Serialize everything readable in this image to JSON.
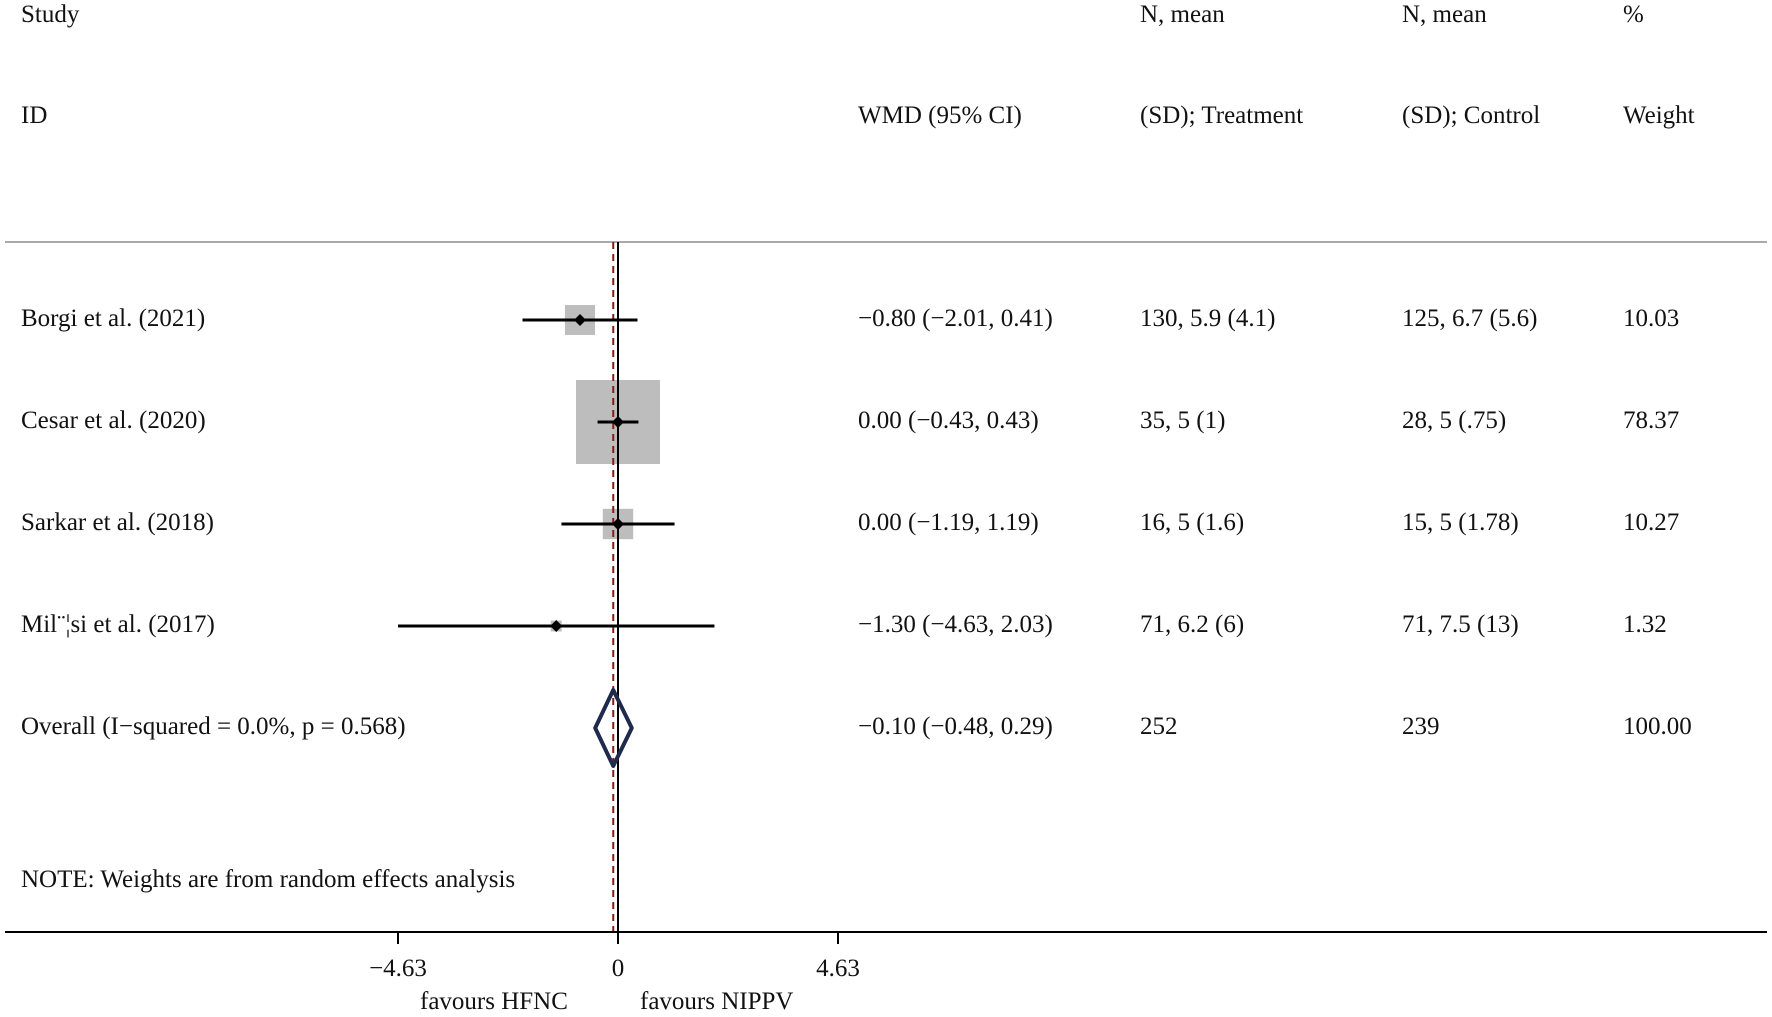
{
  "header": {
    "study_line1": "Study",
    "study_line2": "ID",
    "wmd_label": "WMD (95% CI)",
    "treatment_line1": "N, mean",
    "treatment_line2": "(SD); Treatment",
    "control_line1": "N, mean",
    "control_line2": "(SD); Control",
    "weight_line1": "%",
    "weight_line2": "Weight"
  },
  "rows": [
    {
      "study": "Borgi et al. (2021)",
      "wmd": "−0.80 (−2.01, 0.41)",
      "treatment": "130, 5.9 (4.1)",
      "control": "125, 6.7 (5.6)",
      "weight": "10.03"
    },
    {
      "study": "Cesar et al. (2020)",
      "wmd": "0.00 (−0.43, 0.43)",
      "treatment": "35, 5 (1)",
      "control": "28, 5 (.75)",
      "weight": "78.37"
    },
    {
      "study": "Sarkar et al. (2018)",
      "wmd": "0.00 (−1.19, 1.19)",
      "treatment": "16, 5 (1.6)",
      "control": "15, 5 (1.78)",
      "weight": "10.27"
    },
    {
      "study": "Mil¨¦si et al. (2017)",
      "wmd": "−1.30 (−4.63, 2.03)",
      "treatment": "71, 6.2 (6)",
      "control": "71, 7.5 (13)",
      "weight": "1.32"
    }
  ],
  "overall": {
    "study": "Overall  (I−squared = 0.0%, p = 0.568)",
    "wmd": "−0.10 (−0.48, 0.29)",
    "treatment": "252",
    "control": "239",
    "weight": "100.00"
  },
  "note": "NOTE: Weights are from random effects analysis",
  "axis": {
    "ticks": [
      "−4.63",
      "0",
      "4.63"
    ],
    "favours_left": "favours HFNC",
    "favours_right": "favours NIPPV"
  },
  "colors": {
    "box": "#bdbdbd",
    "line": "#000000",
    "diamond": "#1f2a4d",
    "null_line": "#000000",
    "overall_line": "#8b1a1a",
    "rule": "#a9a9a9"
  },
  "chart_data": {
    "type": "scatter",
    "subtype": "forest-plot",
    "xlim": [
      -4.63,
      4.63
    ],
    "xticks": [
      -4.63,
      0,
      4.63
    ],
    "null_value": 0,
    "overall_effect": -0.1,
    "studies": [
      {
        "name": "Borgi et al. (2021)",
        "estimate": -0.8,
        "lower": -2.01,
        "upper": 0.41,
        "weight": 10.03
      },
      {
        "name": "Cesar et al. (2020)",
        "estimate": 0.0,
        "lower": -0.43,
        "upper": 0.43,
        "weight": 78.37
      },
      {
        "name": "Sarkar et al. (2018)",
        "estimate": 0.0,
        "lower": -1.19,
        "upper": 1.19,
        "weight": 10.27
      },
      {
        "name": "Mil¨¦si et al. (2017)",
        "estimate": -1.3,
        "lower": -4.63,
        "upper": 2.03,
        "weight": 1.32
      }
    ],
    "overall": {
      "estimate": -0.1,
      "lower": -0.48,
      "upper": 0.29,
      "weight": 100.0
    }
  }
}
